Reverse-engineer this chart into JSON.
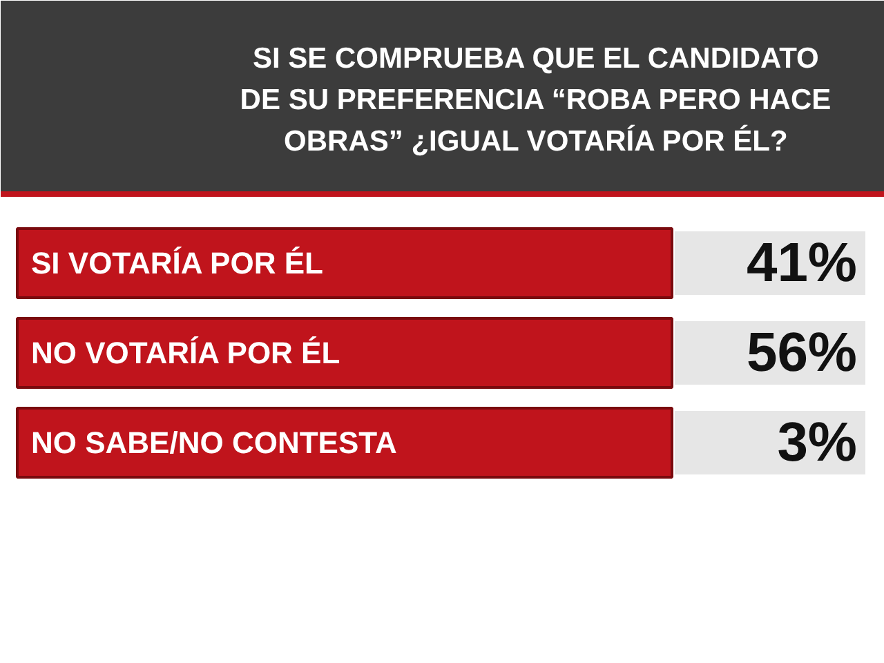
{
  "chart_data": {
    "type": "other",
    "title": "SI SE COMPRUEBA QUE EL CANDIDATO DE SU PREFERENCIA “ROBA PERO HACE OBRAS” ¿IGUAL VOTARÍA POR ÉL?",
    "categories": [
      "SI VOTARÍA POR ÉL",
      "NO VOTARÍA POR ÉL",
      "NO SABE/NO CONTESTA"
    ],
    "values": [
      41,
      56,
      3
    ],
    "value_labels": [
      "41%",
      "56%",
      "3%"
    ],
    "color": "#c0141c"
  }
}
